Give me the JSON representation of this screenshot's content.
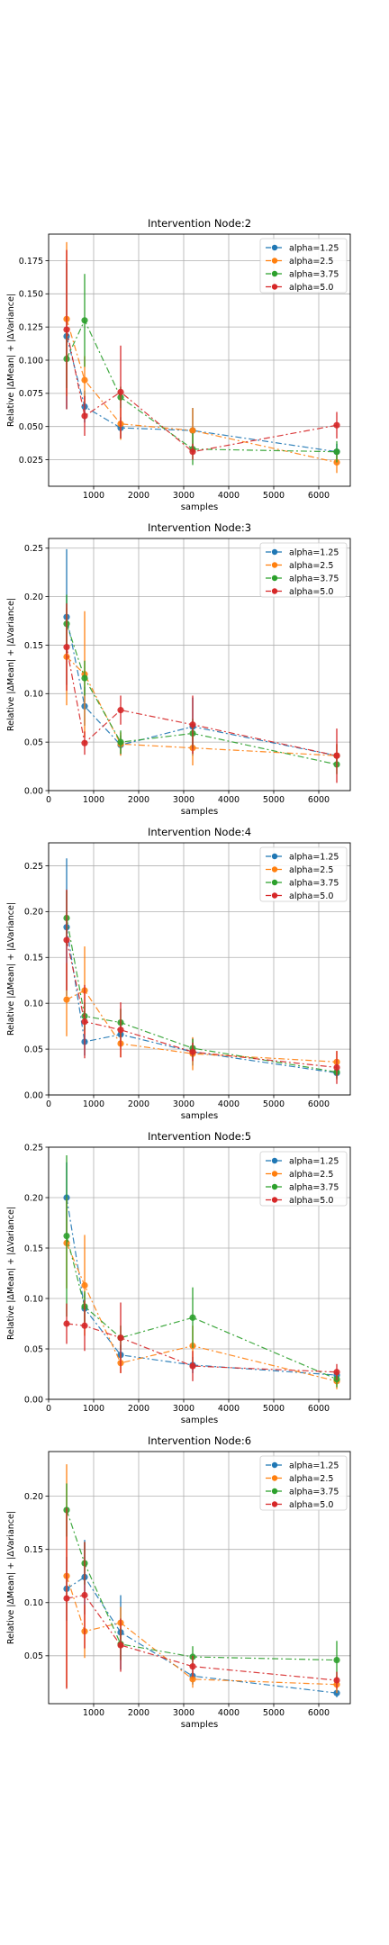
{
  "chart_data": [
    {
      "type": "line",
      "title": "Intervention Node:2",
      "xlabel": "samples",
      "ylabel": "Relative |ΔMean| + |ΔVariance|",
      "xlim": [
        0,
        6700
      ],
      "ylim": [
        0.005,
        0.195
      ],
      "xticks": [
        1000,
        2000,
        3000,
        4000,
        5000,
        6000
      ],
      "yticks": [
        0.025,
        0.05,
        0.075,
        0.1,
        0.125,
        0.15,
        0.175
      ],
      "ytick_labels": [
        "0.025",
        "0.050",
        "0.075",
        "0.100",
        "0.125",
        "0.150",
        "0.175"
      ],
      "grid": true,
      "legend_position": "upper-right",
      "x": [
        400,
        800,
        1600,
        3200,
        6400
      ],
      "series": [
        {
          "name": "alpha=1.25",
          "values": [
            0.118,
            0.065,
            0.049,
            0.047,
            0.031
          ],
          "errors": [
            0.055,
            0.012,
            0.008,
            0.017,
            0.006
          ]
        },
        {
          "name": "alpha=2.5",
          "values": [
            0.131,
            0.085,
            0.052,
            0.047,
            0.023
          ],
          "errors": [
            0.058,
            0.018,
            0.012,
            0.017,
            0.008
          ]
        },
        {
          "name": "alpha=3.75",
          "values": [
            0.101,
            0.13,
            0.072,
            0.033,
            0.031
          ],
          "errors": [
            0.022,
            0.035,
            0.008,
            0.012,
            0.008
          ]
        },
        {
          "name": "alpha=5.0",
          "values": [
            0.123,
            0.058,
            0.076,
            0.031,
            0.051
          ],
          "errors": [
            0.06,
            0.015,
            0.035,
            0.006,
            0.01
          ]
        }
      ]
    },
    {
      "type": "line",
      "title": "Intervention Node:3",
      "xlabel": "samples",
      "ylabel": "Relative |ΔMean| + |ΔVariance|",
      "xlim": [
        0,
        6700
      ],
      "ylim": [
        0,
        0.26
      ],
      "xticks": [
        0,
        1000,
        2000,
        3000,
        4000,
        5000,
        6000
      ],
      "yticks": [
        0.0,
        0.05,
        0.1,
        0.15,
        0.2,
        0.25
      ],
      "ytick_labels": [
        "0.00",
        "0.05",
        "0.10",
        "0.15",
        "0.20",
        "0.25"
      ],
      "grid": true,
      "legend_position": "upper-right",
      "x": [
        400,
        800,
        1600,
        3200,
        6400
      ],
      "series": [
        {
          "name": "alpha=1.25",
          "values": [
            0.179,
            0.087,
            0.047,
            0.066,
            0.036
          ],
          "errors": [
            0.07,
            0.02,
            0.01,
            0.03,
            0.012
          ]
        },
        {
          "name": "alpha=2.5",
          "values": [
            0.138,
            0.12,
            0.048,
            0.044,
            0.036
          ],
          "errors": [
            0.05,
            0.065,
            0.012,
            0.018,
            0.012
          ]
        },
        {
          "name": "alpha=3.75",
          "values": [
            0.172,
            0.116,
            0.05,
            0.059,
            0.027
          ],
          "errors": [
            0.03,
            0.018,
            0.012,
            0.015,
            0.01
          ]
        },
        {
          "name": "alpha=5.0",
          "values": [
            0.148,
            0.049,
            0.083,
            0.068,
            0.036
          ],
          "errors": [
            0.045,
            0.012,
            0.015,
            0.03,
            0.028
          ]
        }
      ]
    },
    {
      "type": "line",
      "title": "Intervention Node:4",
      "xlabel": "samples",
      "ylabel": "Relative |ΔMean| + |ΔVariance|",
      "xlim": [
        0,
        6700
      ],
      "ylim": [
        0,
        0.275
      ],
      "xticks": [
        0,
        1000,
        2000,
        3000,
        4000,
        5000,
        6000
      ],
      "yticks": [
        0.0,
        0.05,
        0.1,
        0.15,
        0.2,
        0.25
      ],
      "ytick_labels": [
        "0.00",
        "0.05",
        "0.10",
        "0.15",
        "0.20",
        "0.25"
      ],
      "grid": true,
      "legend_position": "upper-right",
      "x": [
        400,
        800,
        1600,
        3200,
        6400
      ],
      "series": [
        {
          "name": "alpha=1.25",
          "values": [
            0.183,
            0.058,
            0.066,
            0.047,
            0.024
          ],
          "errors": [
            0.075,
            0.015,
            0.012,
            0.015,
            0.005
          ]
        },
        {
          "name": "alpha=2.5",
          "values": [
            0.104,
            0.114,
            0.056,
            0.045,
            0.036
          ],
          "errors": [
            0.04,
            0.048,
            0.015,
            0.018,
            0.012
          ]
        },
        {
          "name": "alpha=3.75",
          "values": [
            0.193,
            0.086,
            0.079,
            0.051,
            0.025
          ],
          "errors": [
            0.03,
            0.015,
            0.015,
            0.01,
            0.008
          ]
        },
        {
          "name": "alpha=5.0",
          "values": [
            0.169,
            0.08,
            0.071,
            0.047,
            0.03
          ],
          "errors": [
            0.055,
            0.04,
            0.03,
            0.01,
            0.018
          ]
        }
      ]
    },
    {
      "type": "line",
      "title": "Intervention Node:5",
      "xlabel": "samples",
      "ylabel": "Relative |ΔMean| + |ΔVariance|",
      "xlim": [
        0,
        6700
      ],
      "ylim": [
        0,
        0.25
      ],
      "xticks": [
        0,
        1000,
        2000,
        3000,
        4000,
        5000,
        6000
      ],
      "yticks": [
        0.0,
        0.05,
        0.1,
        0.15,
        0.2,
        0.25
      ],
      "ytick_labels": [
        "0.00",
        "0.05",
        "0.10",
        "0.15",
        "0.20",
        "0.25"
      ],
      "grid": true,
      "legend_position": "upper-right",
      "x": [
        400,
        800,
        1600,
        3200,
        6400
      ],
      "series": [
        {
          "name": "alpha=1.25",
          "values": [
            0.2,
            0.09,
            0.044,
            0.034,
            0.024
          ],
          "errors": [
            0.035,
            0.015,
            0.01,
            0.008,
            0.005
          ]
        },
        {
          "name": "alpha=2.5",
          "values": [
            0.155,
            0.113,
            0.036,
            0.053,
            0.018
          ],
          "errors": [
            0.045,
            0.05,
            0.01,
            0.02,
            0.008
          ]
        },
        {
          "name": "alpha=3.75",
          "values": [
            0.162,
            0.092,
            0.061,
            0.081,
            0.02
          ],
          "errors": [
            0.08,
            0.015,
            0.012,
            0.03,
            0.008
          ]
        },
        {
          "name": "alpha=5.0",
          "values": [
            0.075,
            0.073,
            0.061,
            0.033,
            0.027
          ],
          "errors": [
            0.02,
            0.025,
            0.035,
            0.015,
            0.008
          ]
        }
      ]
    },
    {
      "type": "line",
      "title": "Intervention Node:6",
      "xlabel": "samples",
      "ylabel": "Relative |ΔMean| + |ΔVariance|",
      "xlim": [
        0,
        6700
      ],
      "ylim": [
        0.005,
        0.242
      ],
      "xticks": [
        1000,
        2000,
        3000,
        4000,
        5000,
        6000
      ],
      "yticks": [
        0.05,
        0.1,
        0.15,
        0.2
      ],
      "ytick_labels": [
        "0.05",
        "0.10",
        "0.15",
        "0.20"
      ],
      "grid": true,
      "legend_position": "upper-right",
      "x": [
        400,
        800,
        1600,
        3200,
        6400
      ],
      "series": [
        {
          "name": "alpha=1.25",
          "values": [
            0.113,
            0.124,
            0.072,
            0.031,
            0.015
          ],
          "errors": [
            0.03,
            0.035,
            0.035,
            0.008,
            0.004
          ]
        },
        {
          "name": "alpha=2.5",
          "values": [
            0.125,
            0.073,
            0.081,
            0.028,
            0.023
          ],
          "errors": [
            0.105,
            0.025,
            0.015,
            0.008,
            0.008
          ]
        },
        {
          "name": "alpha=3.75",
          "values": [
            0.187,
            0.137,
            0.061,
            0.049,
            0.046
          ],
          "errors": [
            0.025,
            0.02,
            0.015,
            0.01,
            0.018
          ]
        },
        {
          "name": "alpha=5.0",
          "values": [
            0.104,
            0.107,
            0.06,
            0.04,
            0.027
          ],
          "errors": [
            0.085,
            0.05,
            0.025,
            0.01,
            0.008
          ]
        }
      ]
    }
  ],
  "colors": [
    "#1f77b4",
    "#ff7f0e",
    "#2ca02c",
    "#d62728"
  ]
}
